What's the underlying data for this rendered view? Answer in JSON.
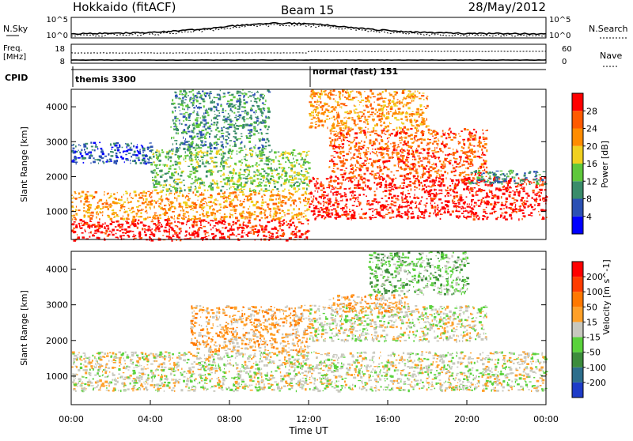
{
  "header": {
    "title": "Hokkaido (fitACF)",
    "beam": "Beam 15",
    "date": "28/May/2012"
  },
  "panels": {
    "nsky": {
      "label": "N.Sky",
      "left_ticks": [
        "10^5",
        "10^0"
      ],
      "right_ticks": [
        "10^5",
        "10^0"
      ],
      "right_label": "N.Search"
    },
    "freq": {
      "label_line1": "Freq.",
      "label_line2": "[MHz]",
      "left_ticks": [
        "18",
        "8"
      ],
      "right_ticks": [
        "60",
        "0"
      ],
      "right_label": "Nave"
    },
    "cpid": {
      "label": "CPID",
      "modes": [
        {
          "name": "themis 3300",
          "start_hour": 0
        },
        {
          "name": "normal (fast) 151",
          "start_hour": 12
        }
      ]
    }
  },
  "chart_data": [
    {
      "type": "heatmap",
      "name": "power",
      "ylabel": "Slant Range [km]",
      "xlim": [
        0,
        24
      ],
      "ylim": [
        200,
        4500
      ],
      "y_ticks": [
        1000,
        2000,
        3000,
        4000
      ],
      "colorbar": {
        "label": "Power [dB]",
        "ticks": [
          "4",
          "8",
          "12",
          "16",
          "20",
          "24",
          "28"
        ],
        "colors": [
          "#0000ff",
          "#2b50b4",
          "#3a8c6a",
          "#5fc83c",
          "#f0d020",
          "#ff8c00",
          "#ff5a00",
          "#ff0000"
        ]
      },
      "regions": [
        {
          "x": [
            0,
            12
          ],
          "y": [
            200,
            800
          ],
          "level": 7
        },
        {
          "x": [
            0,
            12
          ],
          "y": [
            800,
            1600
          ],
          "level": 5
        },
        {
          "x": [
            4,
            12
          ],
          "y": [
            1600,
            2800
          ],
          "level": 3
        },
        {
          "x": [
            5,
            10
          ],
          "y": [
            2800,
            4500
          ],
          "level": 2
        },
        {
          "x": [
            0,
            4
          ],
          "y": [
            2400,
            3000
          ],
          "level": 1
        },
        {
          "x": [
            12,
            24
          ],
          "y": [
            800,
            2000
          ],
          "level": 7
        },
        {
          "x": [
            13,
            21
          ],
          "y": [
            2000,
            3400
          ],
          "level": 6
        },
        {
          "x": [
            12,
            18
          ],
          "y": [
            3400,
            4500
          ],
          "level": 5
        },
        {
          "x": [
            20,
            24
          ],
          "y": [
            1800,
            2200
          ],
          "level": 2
        }
      ]
    },
    {
      "type": "heatmap",
      "name": "velocity",
      "ylabel": "Slant Range [km]",
      "xlabel": "Time UT",
      "xlim": [
        0,
        24
      ],
      "ylim": [
        200,
        4500
      ],
      "y_ticks": [
        1000,
        2000,
        3000,
        4000
      ],
      "x_ticks": [
        "00:00",
        "04:00",
        "08:00",
        "12:00",
        "16:00",
        "20:00",
        "00:00"
      ],
      "colorbar": {
        "label": "Velocity [m s^-1]",
        "ticks": [
          "200",
          "100",
          "50",
          "15",
          "-15",
          "-50",
          "-100",
          "-200"
        ],
        "colors": [
          "#1e3cc8",
          "#2d6e8c",
          "#3c8c3c",
          "#5ad23c",
          "#c8c8be",
          "#ffa028",
          "#ff7800",
          "#ff3c00",
          "#ff0000"
        ]
      },
      "regions": [
        {
          "x": [
            0,
            24
          ],
          "y": [
            600,
            1700
          ],
          "level": 4
        },
        {
          "x": [
            6,
            12
          ],
          "y": [
            1700,
            3000
          ],
          "level": 5
        },
        {
          "x": [
            12,
            21
          ],
          "y": [
            2000,
            3000
          ],
          "level": 4
        },
        {
          "x": [
            13,
            17
          ],
          "y": [
            2800,
            3300
          ],
          "level": 5
        },
        {
          "x": [
            15,
            20
          ],
          "y": [
            3300,
            4500
          ],
          "level": 3
        }
      ]
    }
  ]
}
